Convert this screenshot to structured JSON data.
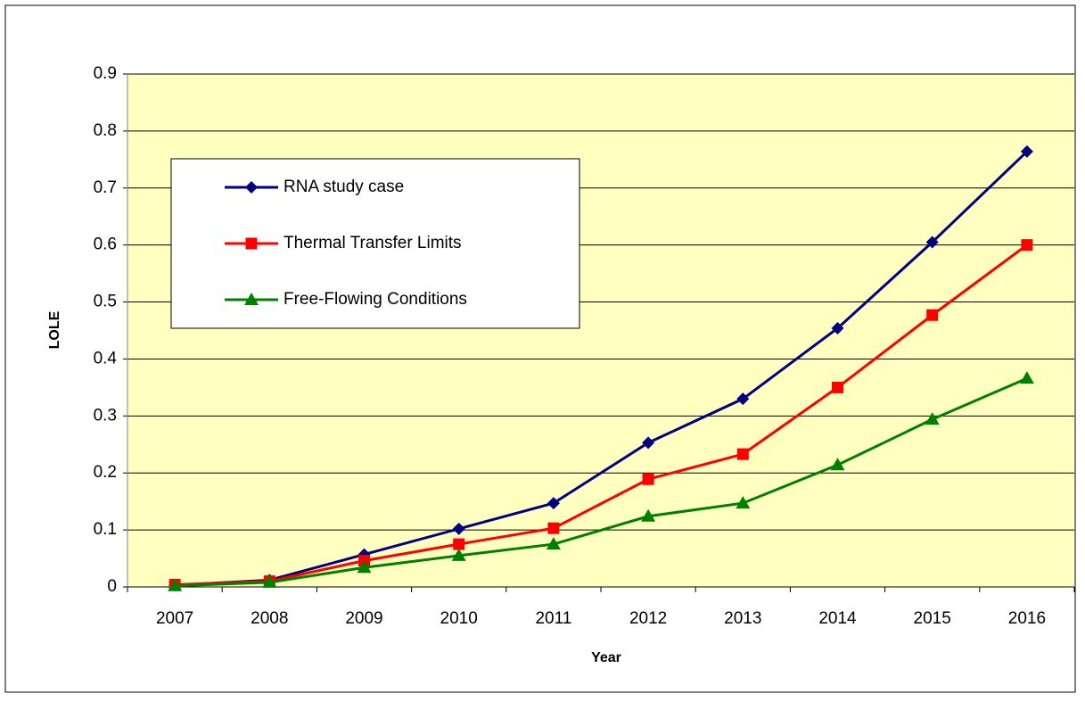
{
  "chart_data": {
    "type": "line",
    "x_label": "Year",
    "y_label": "LOLE",
    "categories": [
      "2007",
      "2008",
      "2009",
      "2010",
      "2011",
      "2012",
      "2013",
      "2014",
      "2015",
      "2016"
    ],
    "series": [
      {
        "name": "RNA study case",
        "color": "#000080",
        "marker": "diamond",
        "values": [
          0.003,
          0.012,
          0.057,
          0.102,
          0.147,
          0.253,
          0.33,
          0.454,
          0.605,
          0.764
        ]
      },
      {
        "name": "Thermal Transfer Limits",
        "color": "#ff0000",
        "marker": "square",
        "values": [
          0.004,
          0.01,
          0.046,
          0.075,
          0.103,
          0.189,
          0.233,
          0.35,
          0.477,
          0.6
        ]
      },
      {
        "name": "Free-Flowing Conditions",
        "color": "#008000",
        "marker": "triangle",
        "values": [
          0.002,
          0.008,
          0.034,
          0.055,
          0.075,
          0.124,
          0.147,
          0.214,
          0.294,
          0.366
        ]
      }
    ],
    "ylim": [
      0,
      0.9
    ],
    "yticks": [
      0,
      0.1,
      0.2,
      0.3,
      0.4,
      0.5,
      0.6,
      0.7,
      0.8,
      0.9
    ],
    "grid": true,
    "background": "#ffffc0"
  }
}
